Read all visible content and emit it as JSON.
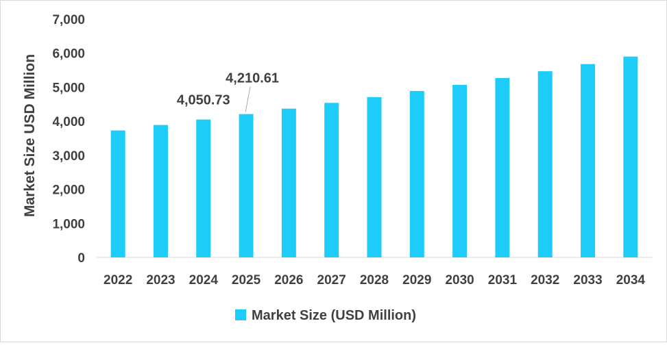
{
  "chart_data": {
    "type": "bar",
    "title": "",
    "xlabel": "",
    "ylabel": "Market Size USD Million",
    "categories": [
      "2022",
      "2023",
      "2024",
      "2025",
      "2026",
      "2027",
      "2028",
      "2029",
      "2030",
      "2031",
      "2032",
      "2033",
      "2034"
    ],
    "series": [
      {
        "name": "Market Size (USD Million)",
        "color": "#1ECCF9",
        "values": [
          3730,
          3890,
          4050.73,
          4210.61,
          4370,
          4540,
          4710,
          4890,
          5070,
          5270,
          5470,
          5680,
          5900
        ]
      }
    ],
    "ylim": [
      0,
      7000
    ],
    "ytick_step": 1000,
    "y_tick_labels": [
      "0",
      "1,000",
      "2,000",
      "3,000",
      "4,000",
      "5,000",
      "6,000",
      "7,000"
    ],
    "data_labels": [
      {
        "category": "2024",
        "text": "4,050.73"
      },
      {
        "category": "2025",
        "text": "4,210.61"
      }
    ],
    "grid": false,
    "legend": "bottom-center"
  }
}
